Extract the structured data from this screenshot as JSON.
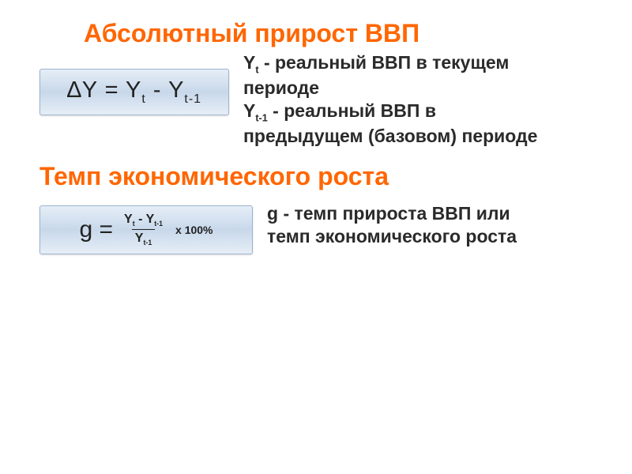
{
  "section1": {
    "title": "Абсолютный прирост ВВП",
    "formula_text": "∆Y = Y",
    "formula_sub1": "t",
    "formula_mid": " - Y",
    "formula_sub2": "t-1",
    "desc_l1a": "Y",
    "desc_l1a_sub": "t",
    "desc_l1b": " - реальный ВВП в текущем периоде",
    "desc_l2a": "Y",
    "desc_l2a_sub": "t-1",
    "desc_l2b": " - реальный ВВП в предыдущем (базовом) периоде"
  },
  "section2": {
    "title": "Темп экономического роста",
    "g_label": "g =",
    "num_a": "Y",
    "num_a_sub": "t",
    "num_mid": " - Y",
    "num_b_sub": "t-1",
    "den_a": "Y",
    "den_sub": "t-1",
    "times": "x 100%",
    "desc_l1": " g - темп прироста ВВП или",
    "desc_l2": "темп экономического роста"
  },
  "colors": {
    "accent": "#ff6600",
    "text": "#2a2a2a",
    "box_border": "#9db4cf"
  }
}
